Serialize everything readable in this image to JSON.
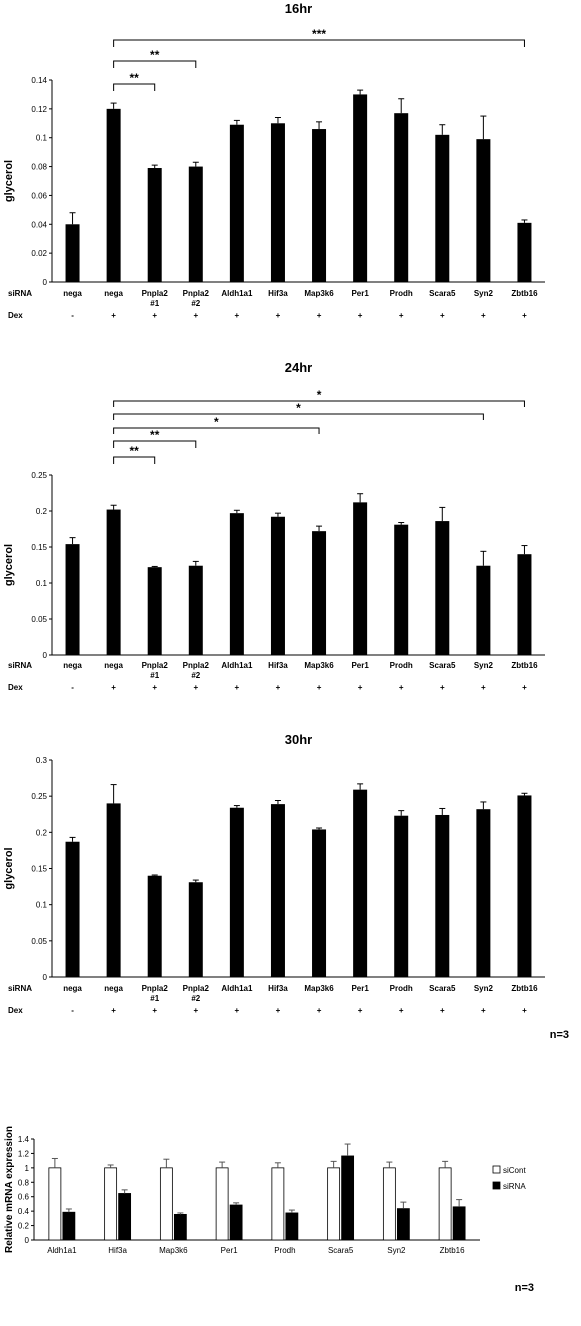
{
  "chart_data": [
    {
      "type": "bar",
      "title": "16hr",
      "ylabel": "glycerol",
      "ylim": [
        0,
        0.14
      ],
      "yticks": [
        "0",
        "0.02",
        "0.04",
        "0.06",
        "0.08",
        "0.1",
        "0.12",
        "0.14"
      ],
      "row_labels": [
        "siRNA",
        "Dex"
      ],
      "categories": [
        [
          "nega"
        ],
        [
          "nega"
        ],
        [
          "Pnpla2",
          "#1"
        ],
        [
          "Pnpla2",
          "#2"
        ],
        [
          "Aldh1a1"
        ],
        [
          "Hif3a"
        ],
        [
          "Map3k6"
        ],
        [
          "Per1"
        ],
        [
          "Prodh"
        ],
        [
          "Scara5"
        ],
        [
          "Syn2"
        ],
        [
          "Zbtb16"
        ]
      ],
      "dex": [
        "-",
        "+",
        "+",
        "+",
        "+",
        "+",
        "+",
        "+",
        "+",
        "+",
        "+",
        "+"
      ],
      "values": [
        0.04,
        0.12,
        0.079,
        0.08,
        0.109,
        0.11,
        0.106,
        0.13,
        0.117,
        0.102,
        0.099,
        0.041
      ],
      "errors": [
        0.008,
        0.004,
        0.002,
        0.003,
        0.003,
        0.004,
        0.005,
        0.003,
        0.01,
        0.007,
        0.016,
        0.002
      ],
      "significance": [
        {
          "from": 1,
          "to": 2,
          "label": "**"
        },
        {
          "from": 1,
          "to": 3,
          "label": "**"
        },
        {
          "from": 1,
          "to": 11,
          "label": "***"
        }
      ],
      "color": "#000000"
    },
    {
      "type": "bar",
      "title": "24hr",
      "ylabel": "glycerol",
      "ylim": [
        0,
        0.25
      ],
      "yticks": [
        "0",
        "0.05",
        "0.1",
        "0.15",
        "0.2",
        "0.25"
      ],
      "row_labels": [
        "siRNA",
        "Dex"
      ],
      "categories": [
        [
          "nega"
        ],
        [
          "nega"
        ],
        [
          "Pnpla2",
          "#1"
        ],
        [
          "Pnpla2",
          "#2"
        ],
        [
          "Aldh1a1"
        ],
        [
          "Hif3a"
        ],
        [
          "Map3k6"
        ],
        [
          "Per1"
        ],
        [
          "Prodh"
        ],
        [
          "Scara5"
        ],
        [
          "Syn2"
        ],
        [
          "Zbtb16"
        ]
      ],
      "dex": [
        "-",
        "+",
        "+",
        "+",
        "+",
        "+",
        "+",
        "+",
        "+",
        "+",
        "+",
        "+"
      ],
      "values": [
        0.154,
        0.202,
        0.122,
        0.124,
        0.197,
        0.192,
        0.172,
        0.212,
        0.181,
        0.186,
        0.124,
        0.14
      ],
      "errors": [
        0.009,
        0.006,
        0.001,
        0.006,
        0.004,
        0.005,
        0.007,
        0.012,
        0.003,
        0.019,
        0.02,
        0.012
      ],
      "significance": [
        {
          "from": 1,
          "to": 2,
          "label": "**"
        },
        {
          "from": 1,
          "to": 3,
          "label": "**"
        },
        {
          "from": 1,
          "to": 6,
          "label": "*"
        },
        {
          "from": 1,
          "to": 10,
          "label": "*"
        },
        {
          "from": 1,
          "to": 11,
          "label": "*"
        }
      ],
      "color": "#000000"
    },
    {
      "type": "bar",
      "title": "30hr",
      "ylabel": "glycerol",
      "ylim": [
        0,
        0.3
      ],
      "yticks": [
        "0",
        "0.05",
        "0.1",
        "0.15",
        "0.2",
        "0.25",
        "0.3"
      ],
      "row_labels": [
        "siRNA",
        "Dex"
      ],
      "categories": [
        [
          "nega"
        ],
        [
          "nega"
        ],
        [
          "Pnpla2",
          "#1"
        ],
        [
          "Pnpla2",
          "#2"
        ],
        [
          "Aldh1a1"
        ],
        [
          "Hif3a"
        ],
        [
          "Map3k6"
        ],
        [
          "Per1"
        ],
        [
          "Prodh"
        ],
        [
          "Scara5"
        ],
        [
          "Syn2"
        ],
        [
          "Zbtb16"
        ]
      ],
      "dex": [
        "-",
        "+",
        "+",
        "+",
        "+",
        "+",
        "+",
        "+",
        "+",
        "+",
        "+",
        "+"
      ],
      "values": [
        0.187,
        0.24,
        0.14,
        0.131,
        0.234,
        0.239,
        0.204,
        0.259,
        0.223,
        0.224,
        0.232,
        0.251
      ],
      "errors": [
        0.006,
        0.026,
        0.001,
        0.003,
        0.003,
        0.005,
        0.002,
        0.008,
        0.007,
        0.009,
        0.01,
        0.003
      ],
      "significance": [],
      "color": "#000000",
      "note": "n=3"
    },
    {
      "type": "bar",
      "title": "",
      "ylabel": "Relative mRNA expression",
      "ylim": [
        0,
        1.4
      ],
      "yticks": [
        "0",
        "0.2",
        "0.4",
        "0.6",
        "0.8",
        "1",
        "1.2",
        "1.4"
      ],
      "categories": [
        "Aldh1a1",
        "Hif3a",
        "Map3k6",
        "Per1",
        "Prodh",
        "Scara5",
        "Syn2",
        "Zbtb16"
      ],
      "series": [
        {
          "name": "siCont",
          "values": [
            1.0,
            1.0,
            1.0,
            1.0,
            1.0,
            1.0,
            1.0,
            1.0
          ],
          "errors": [
            0.13,
            0.04,
            0.12,
            0.08,
            0.07,
            0.09,
            0.08,
            0.09
          ],
          "fill": "#ffffff"
        },
        {
          "name": "siRNA",
          "values": [
            0.385,
            0.645,
            0.355,
            0.485,
            0.375,
            1.165,
            0.435,
            0.46
          ],
          "errors": [
            0.045,
            0.05,
            0.02,
            0.03,
            0.04,
            0.165,
            0.09,
            0.1
          ],
          "fill": "#000000"
        }
      ],
      "legend": "right",
      "note": "n=3"
    }
  ]
}
